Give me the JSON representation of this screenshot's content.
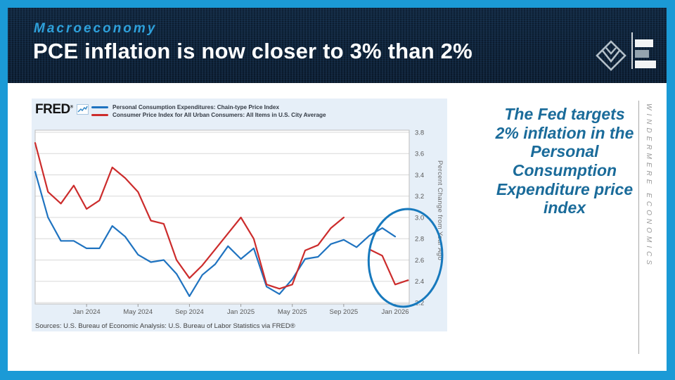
{
  "slide": {
    "eyebrow": "Macroeconomy",
    "title": "PCE inflation is now closer to 3% than 2%",
    "callout": "The Fed targets 2% inflation in the Personal Consumption Expenditure price index",
    "brand_vertical": "WINDERMERE ECONOMICS",
    "colors": {
      "border_blue": "#1b9ad6",
      "header_navy": "#0c2036",
      "eyebrow_blue": "#2ea1db",
      "callout_blue": "#1a6b9a",
      "pce_line": "#1f73c0",
      "cpi_line": "#cc2c2c",
      "annotation_blue": "#1779bd",
      "card_bg": "#e6eff8"
    }
  },
  "chart": {
    "brand": "FRED",
    "brand_mark": "®",
    "legend": [
      {
        "label": "Personal Consumption Expenditures: Chain-type Price Index",
        "color": "#1f73c0"
      },
      {
        "label": "Consumer Price Index for All Urban Consumers: All Items in U.S. City Average",
        "color": "#cc2c2c"
      }
    ],
    "source_note": "Sources: U.S. Bureau of Economic Analysis: U.S. Bureau of Labor Statistics via FRED®"
  },
  "chart_data": {
    "type": "line",
    "title": "",
    "xlabel": "",
    "ylabel": "Percent Change from Year Ago",
    "ylim": [
      2.2,
      3.8
    ],
    "ytick_step": 0.2,
    "grid": "horizontal",
    "legend_position": "top-left",
    "x_months": [
      "Sep 2023",
      "Oct 2023",
      "Nov 2023",
      "Dec 2023",
      "Jan 2024",
      "Feb 2024",
      "Mar 2024",
      "Apr 2024",
      "May 2024",
      "Jun 2024",
      "Jul 2024",
      "Aug 2024",
      "Sep 2024",
      "Oct 2024",
      "Nov 2024",
      "Dec 2024",
      "Jan 2025",
      "Feb 2025",
      "Mar 2025",
      "Apr 2025",
      "May 2025",
      "Jun 2025",
      "Jul 2025",
      "Aug 2025",
      "Sep 2025",
      "Oct 2025",
      "Nov 2025",
      "Dec 2025",
      "Jan 2026",
      "Feb 2026"
    ],
    "xtick_labels": [
      "Jan 2024",
      "May 2024",
      "Sep 2024",
      "Jan 2025",
      "May 2025",
      "Sep 2025",
      "Jan 2026"
    ],
    "xtick_month_index": [
      4,
      8,
      12,
      16,
      20,
      24,
      28
    ],
    "series": [
      {
        "name": "Personal Consumption Expenditures: Chain-type Price Index",
        "color": "#1f73c0",
        "segments": [
          {
            "start_month_index": 0,
            "values": [
              3.43,
              3.0,
              2.78,
              2.78,
              2.71,
              2.71,
              2.92,
              2.82,
              2.65,
              2.58,
              2.6,
              2.47,
              2.26,
              2.46,
              2.56,
              2.73,
              2.61,
              2.71,
              2.35,
              2.28,
              2.42,
              2.61,
              2.63,
              2.75,
              2.79,
              2.72,
              2.83,
              2.9,
              2.82
            ]
          }
        ]
      },
      {
        "name": "Consumer Price Index for All Urban Consumers: All Items in U.S. City Average",
        "color": "#cc2c2c",
        "gap_note": "line breaks after Sep 2025 and resumes Nov 2025",
        "segments": [
          {
            "start_month_index": 0,
            "values": [
              3.7,
              3.24,
              3.13,
              3.3,
              3.08,
              3.16,
              3.47,
              3.37,
              3.24,
              2.97,
              2.94,
              2.6,
              2.43,
              2.55,
              2.7,
              2.85,
              3.0,
              2.8,
              2.37,
              2.33,
              2.37,
              2.69,
              2.74,
              2.9,
              3.0
            ]
          },
          {
            "start_month_index": 26,
            "values": [
              2.7,
              2.64,
              2.37,
              2.41
            ]
          }
        ]
      }
    ],
    "annotation_ellipse": {
      "center_month": 28.8,
      "center_value": 2.62,
      "radius_months": 2.85,
      "radius_value": 0.46,
      "rotation_deg": 6,
      "color": "#1779bd"
    }
  }
}
